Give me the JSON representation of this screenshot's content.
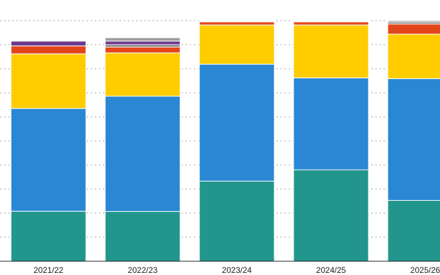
{
  "chart_data": {
    "type": "bar",
    "stacked": true,
    "percent_stacked": true,
    "categories": [
      "2021/22",
      "2022/23",
      "2023/24",
      "2024/25",
      "2025/26"
    ],
    "series": [
      {
        "color": "#22968c",
        "values": [
          20.8,
          20.7,
          33.3,
          38.0,
          25.3
        ]
      },
      {
        "color": "#2a87d3",
        "values": [
          42.7,
          47.9,
          48.6,
          38.2,
          50.6
        ]
      },
      {
        "color": "#ffcc00",
        "values": [
          22.7,
          18.0,
          16.3,
          22.0,
          18.5
        ]
      },
      {
        "color": "#e4461b",
        "values": [
          3.3,
          2.4,
          1.3,
          1.3,
          4.2
        ]
      },
      {
        "color": "#7f7f7f",
        "values": [
          0.0,
          1.0,
          0.2,
          0.2,
          0.8
        ]
      },
      {
        "color": "#6b3a8f",
        "values": [
          2.0,
          1.5,
          0.0,
          0.0,
          0.0
        ]
      },
      {
        "color": "#9e9e9e",
        "values": [
          0.3,
          1.4,
          0.3,
          0.3,
          0.6
        ]
      }
    ],
    "ylim": [
      0,
      100
    ],
    "grid": true,
    "grid_style": "dotted"
  }
}
